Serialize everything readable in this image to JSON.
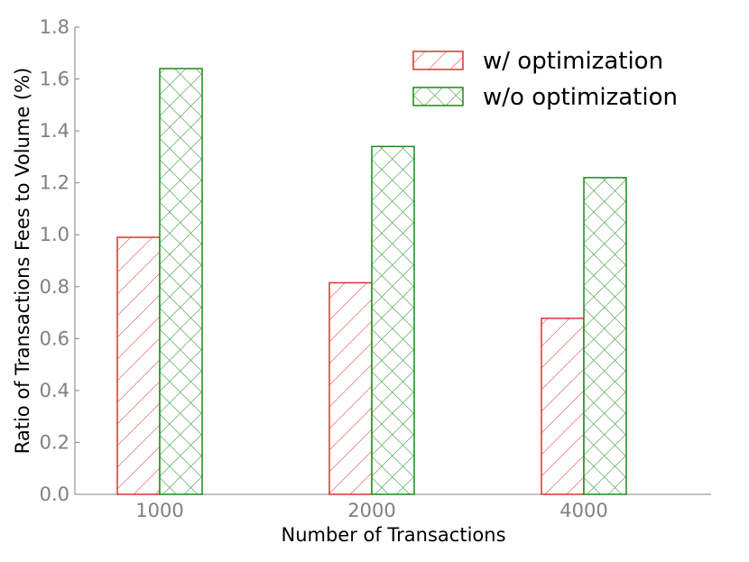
{
  "chart_data": {
    "type": "bar",
    "title": "",
    "xlabel": "Number of Transactions",
    "ylabel": "Ratio of Transactions Fees to Volume (%)",
    "categories": [
      "1000",
      "2000",
      "4000"
    ],
    "ylim": [
      0,
      1.8
    ],
    "yticks": [
      "0.0",
      "0.2",
      "0.4",
      "0.6",
      "0.8",
      "1.0",
      "1.2",
      "1.4",
      "1.6",
      "1.8"
    ],
    "grid": false,
    "legend_position": "top-right",
    "series": [
      {
        "name": "w/ optimization",
        "values": [
          0.99,
          0.815,
          0.678
        ],
        "color": "#e03030",
        "hatch": "diagonal"
      },
      {
        "name": "w/o optimization",
        "values": [
          1.64,
          1.34,
          1.22
        ],
        "color": "#1a8a1a",
        "hatch": "cross"
      }
    ]
  }
}
